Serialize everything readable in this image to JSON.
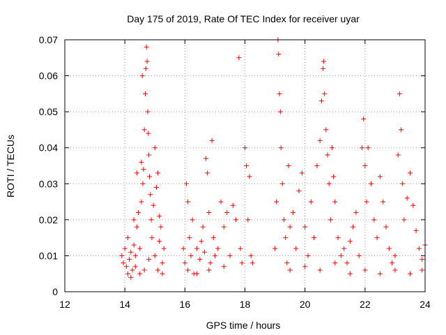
{
  "chart_data": {
    "type": "scatter",
    "title": "Day 175 of 2019, Rate Of TEC Index for receiver uyar",
    "xlabel": "GPS time / hours",
    "ylabel": "ROTI / TECUs",
    "xlim": [
      12,
      24
    ],
    "ylim": [
      0,
      0.07
    ],
    "x_ticks": [
      12,
      14,
      16,
      18,
      20,
      22,
      24
    ],
    "x_tick_labels": [
      "12",
      "14",
      "16",
      "18",
      "20",
      "22",
      "24"
    ],
    "y_ticks": [
      0,
      0.01,
      0.02,
      0.03,
      0.04,
      0.05,
      0.06,
      0.07
    ],
    "y_tick_labels": [
      "0",
      "0.01",
      "0.02",
      "0.03",
      "0.04",
      "0.05",
      "0.06",
      "0.07"
    ],
    "grid": true,
    "marker": "plus",
    "color": "#ff0000",
    "series": [
      {
        "name": "ROTI",
        "points": [
          [
            13.9,
            0.01
          ],
          [
            13.95,
            0.008
          ],
          [
            14.0,
            0.012
          ],
          [
            14.05,
            0.007
          ],
          [
            14.1,
            0.015
          ],
          [
            14.15,
            0.009
          ],
          [
            14.2,
            0.011
          ],
          [
            14.25,
            0.006
          ],
          [
            14.3,
            0.013
          ],
          [
            14.35,
            0.01
          ],
          [
            14.4,
            0.018
          ],
          [
            14.45,
            0.022
          ],
          [
            14.5,
            0.012
          ],
          [
            14.55,
            0.025
          ],
          [
            14.6,
            0.03
          ],
          [
            14.62,
            0.034
          ],
          [
            14.65,
            0.045
          ],
          [
            14.68,
            0.055
          ],
          [
            14.7,
            0.062
          ],
          [
            14.72,
            0.068
          ],
          [
            14.74,
            0.064
          ],
          [
            14.76,
            0.05
          ],
          [
            14.78,
            0.044
          ],
          [
            14.8,
            0.038
          ],
          [
            14.82,
            0.032
          ],
          [
            14.85,
            0.027
          ],
          [
            14.88,
            0.02
          ],
          [
            14.9,
            0.015
          ],
          [
            14.95,
            0.024
          ],
          [
            15.0,
            0.04
          ],
          [
            15.05,
            0.029
          ],
          [
            15.1,
            0.033
          ],
          [
            15.15,
            0.021
          ],
          [
            15.2,
            0.018
          ],
          [
            15.25,
            0.008
          ],
          [
            15.3,
            0.012
          ],
          [
            14.3,
            0.02
          ],
          [
            14.4,
            0.033
          ],
          [
            14.55,
            0.036
          ],
          [
            14.58,
            0.06
          ],
          [
            15.0,
            0.01
          ],
          [
            15.1,
            0.006
          ],
          [
            14.1,
            0.005
          ],
          [
            14.2,
            0.004
          ],
          [
            14.35,
            0.007
          ],
          [
            14.5,
            0.005
          ],
          [
            14.65,
            0.006
          ],
          [
            14.8,
            0.009
          ],
          [
            15.15,
            0.014
          ],
          [
            15.25,
            0.005
          ],
          [
            15.95,
            0.012
          ],
          [
            16.0,
            0.008
          ],
          [
            16.05,
            0.03
          ],
          [
            16.1,
            0.025
          ],
          [
            16.15,
            0.015
          ],
          [
            16.2,
            0.01
          ],
          [
            16.25,
            0.02
          ],
          [
            16.3,
            0.005
          ],
          [
            16.4,
            0.012
          ],
          [
            16.5,
            0.009
          ],
          [
            16.55,
            0.014
          ],
          [
            16.6,
            0.018
          ],
          [
            16.65,
            0.011
          ],
          [
            16.7,
            0.037
          ],
          [
            16.75,
            0.033
          ],
          [
            16.8,
            0.022
          ],
          [
            16.85,
            0.008
          ],
          [
            16.9,
            0.042
          ],
          [
            16.95,
            0.015
          ],
          [
            17.0,
            0.01
          ],
          [
            17.1,
            0.012
          ],
          [
            17.2,
            0.025
          ],
          [
            17.3,
            0.018
          ],
          [
            17.4,
            0.022
          ],
          [
            17.5,
            0.01
          ],
          [
            17.6,
            0.024
          ],
          [
            17.7,
            0.02
          ],
          [
            17.8,
            0.065
          ],
          [
            17.85,
            0.012
          ],
          [
            17.9,
            0.008
          ],
          [
            18.0,
            0.04
          ],
          [
            18.05,
            0.035
          ],
          [
            18.1,
            0.02
          ],
          [
            18.15,
            0.032
          ],
          [
            18.2,
            0.01
          ],
          [
            18.25,
            0.008
          ],
          [
            16.1,
            0.006
          ],
          [
            16.4,
            0.005
          ],
          [
            16.8,
            0.006
          ],
          [
            17.3,
            0.007
          ],
          [
            19.0,
            0.012
          ],
          [
            19.05,
            0.025
          ],
          [
            19.1,
            0.07
          ],
          [
            19.12,
            0.066
          ],
          [
            19.15,
            0.055
          ],
          [
            19.18,
            0.05
          ],
          [
            19.2,
            0.04
          ],
          [
            19.25,
            0.03
          ],
          [
            19.3,
            0.02
          ],
          [
            19.35,
            0.015
          ],
          [
            19.4,
            0.008
          ],
          [
            19.45,
            0.035
          ],
          [
            19.5,
            0.018
          ],
          [
            19.6,
            0.022
          ],
          [
            19.7,
            0.012
          ],
          [
            19.8,
            0.028
          ],
          [
            19.9,
            0.033
          ],
          [
            20.0,
            0.018
          ],
          [
            20.1,
            0.01
          ],
          [
            20.2,
            0.025
          ],
          [
            20.3,
            0.015
          ],
          [
            20.4,
            0.035
          ],
          [
            20.5,
            0.042
          ],
          [
            20.55,
            0.053
          ],
          [
            20.6,
            0.062
          ],
          [
            20.62,
            0.064
          ],
          [
            20.65,
            0.055
          ],
          [
            20.7,
            0.045
          ],
          [
            20.75,
            0.038
          ],
          [
            20.8,
            0.03
          ],
          [
            20.85,
            0.02
          ],
          [
            20.9,
            0.04
          ],
          [
            20.95,
            0.032
          ],
          [
            21.0,
            0.025
          ],
          [
            21.1,
            0.015
          ],
          [
            21.2,
            0.01
          ],
          [
            21.3,
            0.012
          ],
          [
            21.4,
            0.008
          ],
          [
            21.5,
            0.014
          ],
          [
            21.6,
            0.018
          ],
          [
            21.7,
            0.022
          ],
          [
            21.8,
            0.01
          ],
          [
            21.9,
            0.04
          ],
          [
            21.95,
            0.048
          ],
          [
            22.0,
            0.035
          ],
          [
            22.05,
            0.025
          ],
          [
            22.1,
            0.04
          ],
          [
            22.2,
            0.03
          ],
          [
            22.3,
            0.02
          ],
          [
            22.4,
            0.015
          ],
          [
            22.5,
            0.032
          ],
          [
            22.6,
            0.025
          ],
          [
            22.7,
            0.018
          ],
          [
            22.8,
            0.012
          ],
          [
            22.9,
            0.008
          ],
          [
            23.0,
            0.01
          ],
          [
            23.1,
            0.038
          ],
          [
            23.15,
            0.055
          ],
          [
            23.2,
            0.045
          ],
          [
            23.25,
            0.03
          ],
          [
            23.3,
            0.02
          ],
          [
            23.4,
            0.026
          ],
          [
            23.5,
            0.033
          ],
          [
            23.6,
            0.024
          ],
          [
            23.7,
            0.017
          ],
          [
            23.8,
            0.012
          ],
          [
            23.9,
            0.009
          ],
          [
            24.0,
            0.013
          ],
          [
            19.5,
            0.006
          ],
          [
            20.0,
            0.007
          ],
          [
            20.5,
            0.006
          ],
          [
            21.0,
            0.008
          ],
          [
            21.5,
            0.005
          ],
          [
            22.0,
            0.006
          ],
          [
            22.5,
            0.005
          ],
          [
            23.0,
            0.006
          ],
          [
            23.5,
            0.005
          ],
          [
            23.9,
            0.006
          ]
        ]
      }
    ]
  }
}
